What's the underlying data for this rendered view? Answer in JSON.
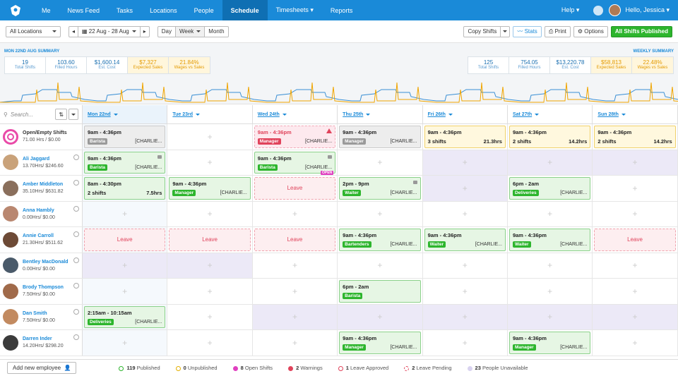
{
  "nav": {
    "items": [
      "Me",
      "News Feed",
      "Tasks",
      "Locations",
      "People",
      "Schedule",
      "Timesheets ▾",
      "Reports"
    ],
    "help": "Help ▾",
    "user": "Hello, Jessica ▾"
  },
  "toolbar": {
    "location": "All Locations",
    "range": "22 Aug - 28 Aug",
    "day": "Day",
    "week": "Week",
    "month": "Month",
    "copy": "Copy Shifts",
    "stats": "Stats",
    "print": "Print",
    "options": "Options",
    "publish": "All Shifts Published"
  },
  "summary": {
    "day_title": "MON 22ND AUG SUMMARY",
    "week_title": "WEEKLY SUMMARY",
    "day": [
      {
        "v": "19",
        "l": "Total Shifts"
      },
      {
        "v": "103.60",
        "l": "Filled Hours"
      },
      {
        "v": "$1,600.14",
        "l": "Est. Cost"
      },
      {
        "v": "$7,327",
        "l": "Expected Sales"
      },
      {
        "v": "21.84%",
        "l": "Wages vs Sales"
      }
    ],
    "week": [
      {
        "v": "125",
        "l": "Total Shifts"
      },
      {
        "v": "754.05",
        "l": "Filled Hours"
      },
      {
        "v": "$13,220.78",
        "l": "Est. Cost"
      },
      {
        "v": "$58,813",
        "l": "Expected Sales"
      },
      {
        "v": "22.48%",
        "l": "Wages vs Sales"
      }
    ]
  },
  "search_placeholder": "Search...",
  "days": [
    "Mon 22nd",
    "Tue 23rd",
    "Wed 24th",
    "Thu 25th",
    "Fri 26th",
    "Sat 27th",
    "Sun 28th"
  ],
  "rows": [
    {
      "name": "Open/Empty Shifts",
      "hours": "71.00 Hrs / $0.00",
      "avatar": "#e94aa8",
      "special": true,
      "cells": [
        {
          "k": "shift",
          "c": "open",
          "t": "9am - 4:36pm",
          "role": "Barista",
          "rc": "gray",
          "loc": "[CHARLIE..."
        },
        {
          "k": "empty"
        },
        {
          "k": "shift",
          "c": "warn",
          "t": "9am - 4:36pm",
          "tred": true,
          "role": "Manager",
          "rc": "red",
          "loc": "[CHARLIE...",
          "alert": true
        },
        {
          "k": "shift",
          "c": "open",
          "t": "9am - 4:36pm",
          "role": "Manager",
          "rc": "gray",
          "loc": "[CHARLIE..."
        },
        {
          "k": "shift",
          "c": "unpub",
          "t": "9am - 4:36pm",
          "cnt": "3 shifts",
          "hrs": "21.3hrs"
        },
        {
          "k": "shift",
          "c": "unpub",
          "t": "9am - 4:36pm",
          "cnt": "2 shifts",
          "hrs": "14.2hrs"
        },
        {
          "k": "shift",
          "c": "unpub",
          "t": "9am - 4:36pm",
          "cnt": "2 shifts",
          "hrs": "14.2hrs"
        }
      ]
    },
    {
      "name": "Ali Jaggard",
      "hours": "13.70Hrs/ $246.60",
      "avatar": "#c9a27a",
      "cells": [
        {
          "k": "shift",
          "c": "pub",
          "t": "9am - 4:36pm",
          "role": "Barista",
          "rc": "green",
          "loc": "[CHARLIE...",
          "lock": true
        },
        {
          "k": "empty"
        },
        {
          "k": "shift",
          "c": "pub",
          "t": "9am - 4:36pm",
          "role": "Barista",
          "rc": "green",
          "loc": "[CHARLIE...",
          "lock": true,
          "open": "OPEN"
        },
        {
          "k": "empty"
        },
        {
          "k": "unav"
        },
        {
          "k": "unav"
        },
        {
          "k": "unav"
        }
      ]
    },
    {
      "name": "Amber Middleton",
      "hours": "35.10Hrs/ $631.82",
      "avatar": "#8a6f5c",
      "cells": [
        {
          "k": "shift",
          "c": "pub",
          "t": "8am - 4:30pm",
          "cnt": "2 shifts",
          "hrs": "7.5hrs"
        },
        {
          "k": "shift",
          "c": "pub",
          "t": "9am - 4:36pm",
          "role": "Manager",
          "rc": "green",
          "loc": "[CHARLIE..."
        },
        {
          "k": "leave",
          "label": "Leave"
        },
        {
          "k": "shift",
          "c": "pub",
          "t": "2pm - 9pm",
          "role": "Waiter",
          "rc": "green",
          "loc": "[CHARLIE...",
          "lock": true
        },
        {
          "k": "unav"
        },
        {
          "k": "shift",
          "c": "pub",
          "t": "6pm - 2am",
          "role": "Deliveries",
          "rc": "green",
          "loc": "[CHARLIE..."
        },
        {
          "k": "empty"
        }
      ]
    },
    {
      "name": "Anna Hambly",
      "hours": "0.00Hrs/ $0.00",
      "avatar": "#b98770",
      "cells": [
        {
          "k": "empty"
        },
        {
          "k": "empty"
        },
        {
          "k": "empty"
        },
        {
          "k": "empty"
        },
        {
          "k": "empty"
        },
        {
          "k": "empty"
        },
        {
          "k": "empty"
        }
      ]
    },
    {
      "name": "Annie Carroll",
      "hours": "21.30Hrs/ $511.62",
      "avatar": "#6d4a36",
      "cells": [
        {
          "k": "leave",
          "label": "Leave"
        },
        {
          "k": "leave",
          "label": "Leave"
        },
        {
          "k": "leave",
          "label": "Leave"
        },
        {
          "k": "shift",
          "c": "pub",
          "t": "9am - 4:36pm",
          "role": "Bartenders",
          "rc": "green",
          "loc": "[CHARLIE..."
        },
        {
          "k": "shift",
          "c": "pub",
          "t": "9am - 4:36pm",
          "role": "Waiter",
          "rc": "green",
          "loc": "[CHARLIE..."
        },
        {
          "k": "shift",
          "c": "pub",
          "t": "9am - 4:36pm",
          "role": "Waiter",
          "rc": "green",
          "loc": "[CHARLIE..."
        },
        {
          "k": "leave",
          "label": "Leave"
        }
      ]
    },
    {
      "name": "Bentley MacDonald",
      "hours": "0.00Hrs/ $0.00",
      "avatar": "#4a5a6a",
      "cells": [
        {
          "k": "unav"
        },
        {
          "k": "unav"
        },
        {
          "k": "empty"
        },
        {
          "k": "empty"
        },
        {
          "k": "empty"
        },
        {
          "k": "empty"
        },
        {
          "k": "empty"
        }
      ]
    },
    {
      "name": "Brody Thompson",
      "hours": "7.50Hrs/ $0.00",
      "avatar": "#a06a4a",
      "cells": [
        {
          "k": "empty"
        },
        {
          "k": "empty"
        },
        {
          "k": "empty"
        },
        {
          "k": "shift",
          "c": "pub",
          "t": "6pm - 2am",
          "role": "Barista",
          "rc": "green",
          "loc": ""
        },
        {
          "k": "empty"
        },
        {
          "k": "empty"
        },
        {
          "k": "empty"
        }
      ]
    },
    {
      "name": "Dan Smith",
      "hours": "7.50Hrs/ $0.00",
      "avatar": "#c28a60",
      "cells": [
        {
          "k": "shift",
          "c": "pub",
          "t": "2:15am - 10:15am",
          "role": "Deliveries",
          "rc": "green",
          "loc": "[CHARLIE..."
        },
        {
          "k": "empty"
        },
        {
          "k": "unav"
        },
        {
          "k": "unav"
        },
        {
          "k": "unav"
        },
        {
          "k": "unav"
        },
        {
          "k": "unav"
        }
      ]
    },
    {
      "name": "Darren Inder",
      "hours": "14.20Hrs/ $298.20",
      "avatar": "#3b3b3b",
      "cells": [
        {
          "k": "empty"
        },
        {
          "k": "empty"
        },
        {
          "k": "empty"
        },
        {
          "k": "shift",
          "c": "pub",
          "t": "9am - 4:36pm",
          "role": "Manager",
          "rc": "green",
          "loc": "[CHARLIE..."
        },
        {
          "k": "empty"
        },
        {
          "k": "shift",
          "c": "pub",
          "t": "9am - 4:36pm",
          "role": "Manager",
          "rc": "green",
          "loc": "[CHARLIE..."
        },
        {
          "k": "empty"
        }
      ]
    }
  ],
  "footer": {
    "add": "Add new employee",
    "legend": [
      {
        "n": "119",
        "l": "Published",
        "color": "#2db52d",
        "hollow": true
      },
      {
        "n": "0",
        "l": "Unpublished",
        "color": "#e3b000",
        "hollow": true
      },
      {
        "n": "8",
        "l": "Open Shifts",
        "color": "#e040c0",
        "hollow": false
      },
      {
        "n": "2",
        "l": "Warnings",
        "color": "#e0435b",
        "hollow": false
      },
      {
        "n": "1",
        "l": "Leave Approved",
        "color": "#e0435b",
        "hollow": true
      },
      {
        "n": "2",
        "l": "Leave Pending",
        "color": "#e0435b",
        "hollow": true,
        "dashed": true
      },
      {
        "n": "23",
        "l": "People Unavailable",
        "color": "#d9d3f0",
        "hollow": false
      }
    ]
  },
  "colors": {
    "brand": "#1a8ad8",
    "published": "#2db52d",
    "warning": "#e0435b"
  }
}
